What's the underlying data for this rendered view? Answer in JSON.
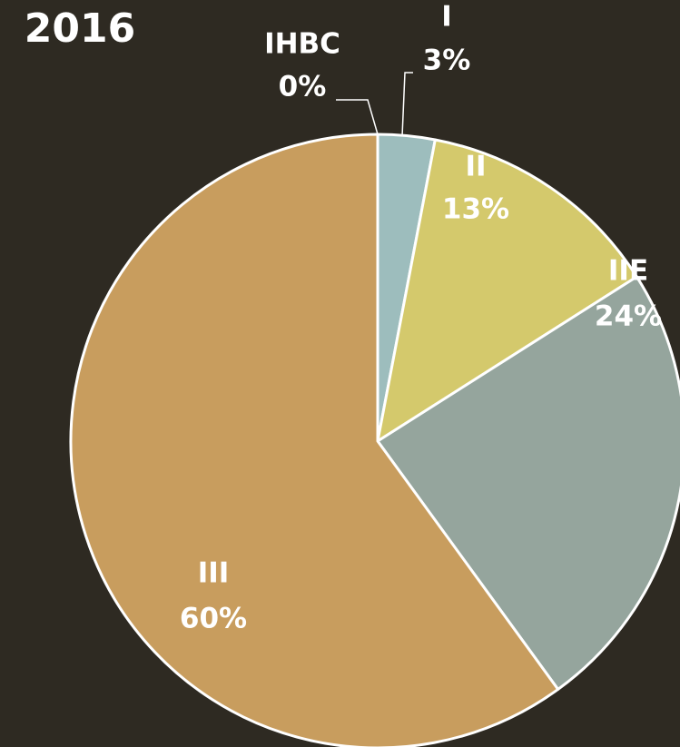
{
  "chart_data": {
    "type": "pie",
    "title": "2016",
    "categories": [
      "IHBC",
      "I",
      "II",
      "IIE",
      "III"
    ],
    "values": [
      0,
      3,
      13,
      24,
      60
    ],
    "value_labels": [
      "0%",
      "3%",
      "13%",
      "24%",
      "60%"
    ],
    "colors": [
      "#a7c3c9",
      "#9dbdbd",
      "#d4c96c",
      "#95a59d",
      "#c89d5e"
    ]
  }
}
